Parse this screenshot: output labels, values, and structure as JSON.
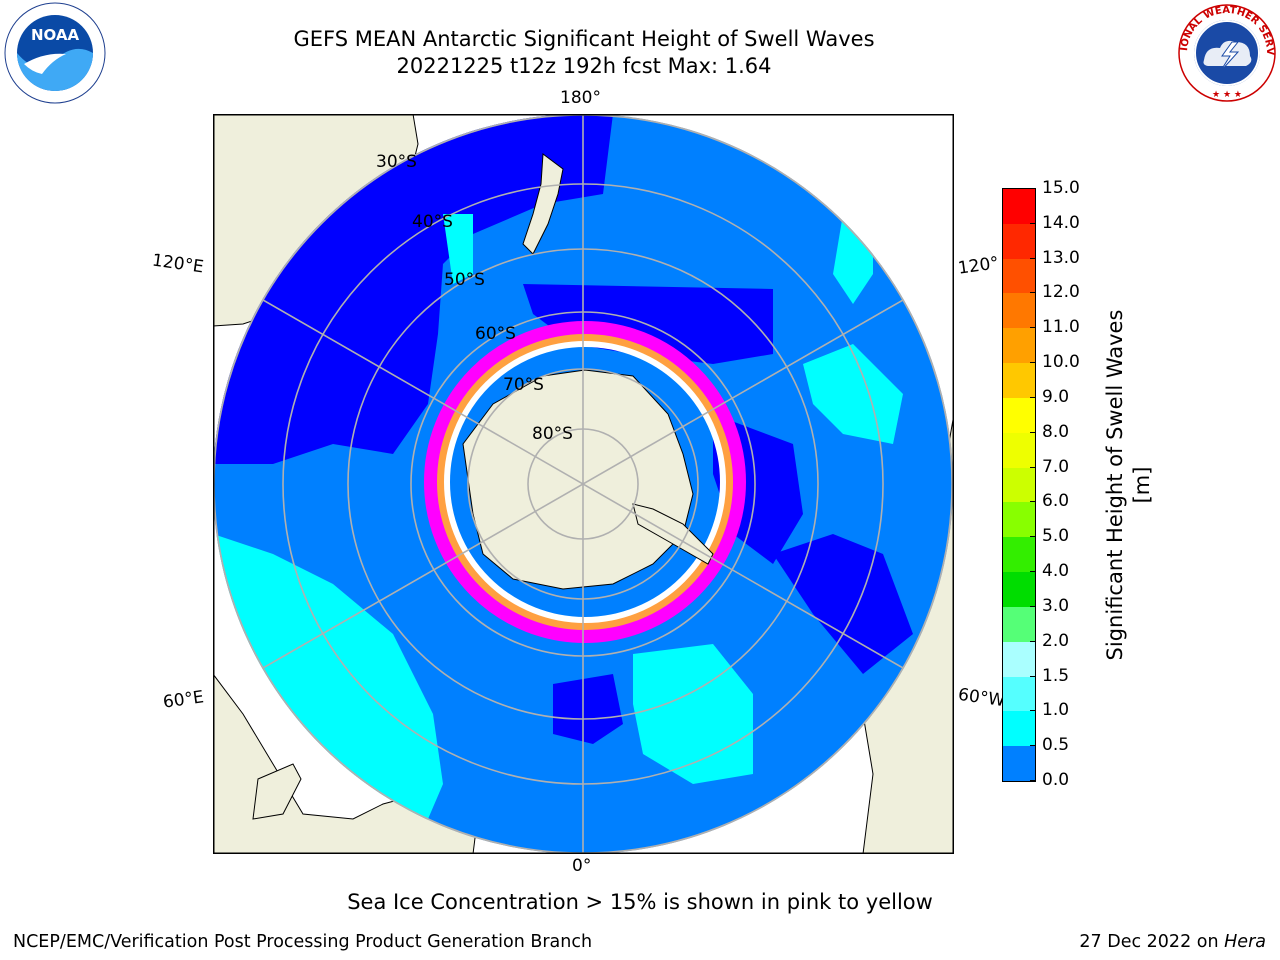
{
  "title": {
    "line1": "GEFS MEAN Antarctic Significant Height of Swell Waves",
    "line2": "20221225 t12z 192h fcst   Max: 1.64"
  },
  "map": {
    "projection": "south-polar-stereographic",
    "labels": {
      "lon_180": "180°",
      "lon_0": "0°",
      "lon_120e": "120°E",
      "lon_60e": "60°E",
      "lon_120w": "120°",
      "lon_60w": "60°W",
      "lat_30": "30°S",
      "lat_40": "40°S",
      "lat_50": "50°S",
      "lat_60": "60°S",
      "lat_70": "70°S",
      "lat_80": "80°S"
    },
    "colors": {
      "land": "#efefdc",
      "ocean_deep": "#0000ff",
      "ocean": "#0080ff",
      "swell_cyan": "#00ffff",
      "ice_pink": "#ff00ff",
      "ice_orange": "#ffa040",
      "grid": "#b0b0b0"
    }
  },
  "colorbar": {
    "label": "Significant Height of Swell Waves [m]",
    "ticks": [
      "15.0",
      "14.0",
      "13.0",
      "12.0",
      "11.0",
      "10.0",
      "9.0",
      "8.0",
      "7.0",
      "6.0",
      "5.0",
      "4.0",
      "3.0",
      "2.0",
      "1.5",
      "1.0",
      "0.5",
      "0.0"
    ],
    "colors": [
      "#ff0000",
      "#ff2800",
      "#ff5000",
      "#ff7800",
      "#ffa000",
      "#ffc800",
      "#ffff00",
      "#eeff00",
      "#ccff00",
      "#88ff00",
      "#33ee00",
      "#00dd00",
      "#55ff77",
      "#aaffff",
      "#55ffff",
      "#00ffff",
      "#0080ff",
      "#0000ff"
    ]
  },
  "footer": {
    "note": "Sea Ice Concentration > 15% is shown in pink to yellow",
    "credit": "NCEP/EMC/Verification Post Processing Product Generation Branch",
    "date": "27 Dec 2022 on",
    "host": "Hera"
  },
  "logos": {
    "noaa": "NOAA",
    "nws_text": "NATIONAL WEATHER SERVICE"
  }
}
